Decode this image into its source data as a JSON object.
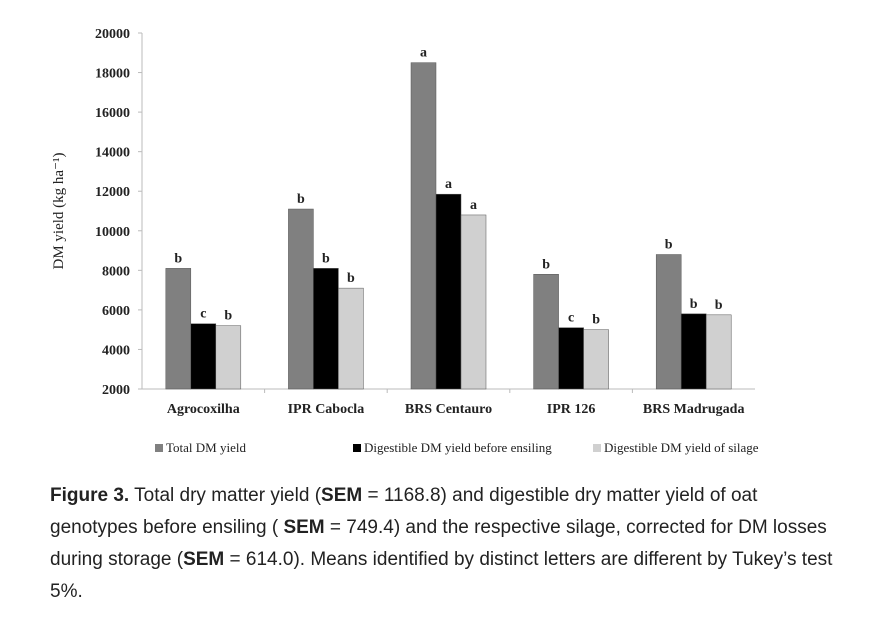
{
  "chart_data": {
    "type": "bar",
    "title": "",
    "xlabel": "",
    "ylabel": "DM yield (kg ha⁻¹)",
    "ylim": [
      2000,
      20000
    ],
    "yticks": [
      2000,
      4000,
      6000,
      8000,
      10000,
      12000,
      14000,
      16000,
      18000,
      20000
    ],
    "categories": [
      "Agrocoxilha",
      "IPR Cabocla",
      "BRS Centauro",
      "IPR 126",
      "BRS Madrugada"
    ],
    "series": [
      {
        "name": "Total DM yield",
        "color": "#808080",
        "values": [
          8100,
          11100,
          18500,
          7800,
          8800
        ],
        "letters": [
          "b",
          "b",
          "a",
          "b",
          "b"
        ]
      },
      {
        "name": "Digestible DM yield before ensiling",
        "color": "#000000",
        "values": [
          5300,
          8100,
          11850,
          5100,
          5800
        ],
        "letters": [
          "c",
          "b",
          "a",
          "c",
          "b"
        ]
      },
      {
        "name": "Digestible DM yield of silage",
        "color": "#d0d0d0",
        "values": [
          5200,
          7100,
          10800,
          5000,
          5750
        ],
        "letters": [
          "b",
          "b",
          "a",
          "b",
          "b"
        ]
      }
    ],
    "grid": false,
    "legend_position": "bottom"
  },
  "caption": {
    "label": "Figure 3.",
    "p1": " Total dry matter yield (",
    "sem": "SEM",
    "p2": " = 1168.8) and digestible dry matter yield of oat genotypes before ensiling ( ",
    "p3": " = 749.4) and the respective silage, corrected for DM losses during storage (",
    "p4": " = 614.0). Means identified by distinct letters are different by Tukey’s test 5%."
  }
}
